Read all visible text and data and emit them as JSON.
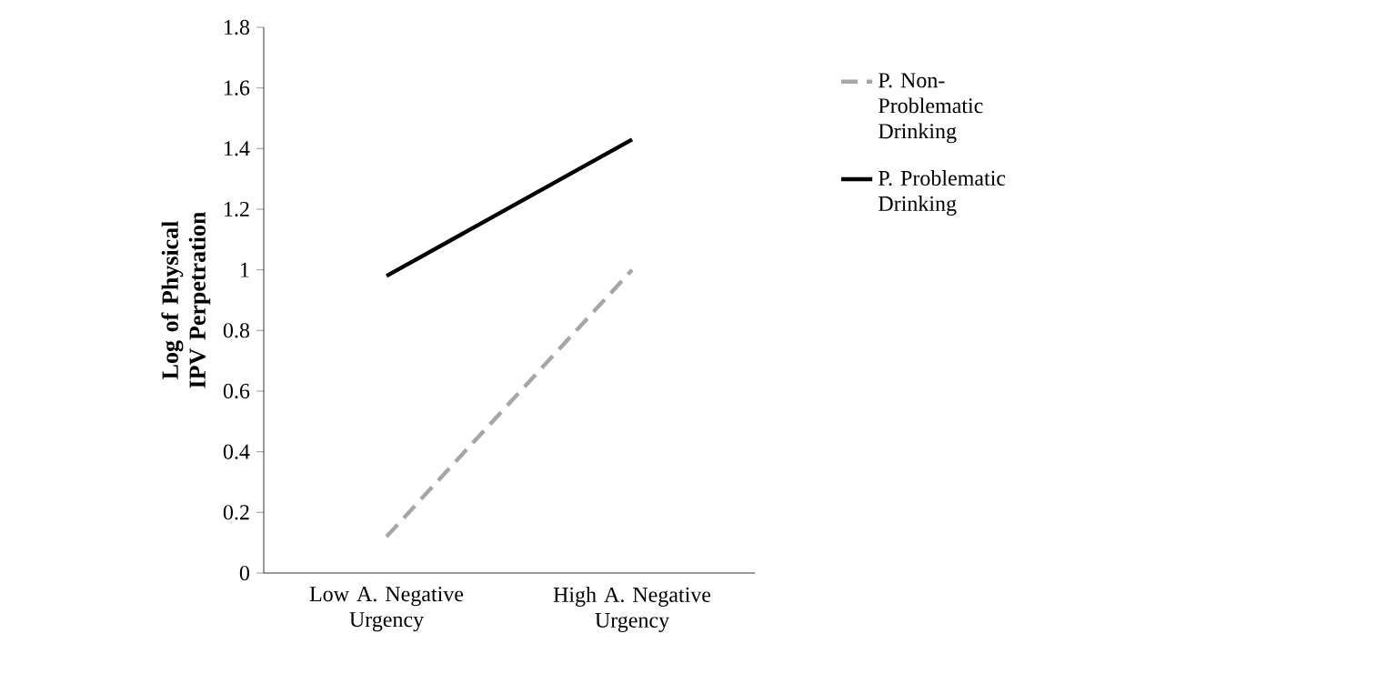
{
  "chart_data": {
    "type": "line",
    "ylabel": "Log of Physical IPV Perpetration",
    "categories": [
      "Low A. Negative Urgency",
      "High A. Negative Urgency"
    ],
    "series": [
      {
        "name": "P. Non-Problematic Drinking",
        "color": "#a6a6a6",
        "line_style": "dashed",
        "values": [
          0.12,
          1.0
        ]
      },
      {
        "name": "P. Problematic Drinking",
        "color": "#000000",
        "line_style": "solid",
        "values": [
          0.98,
          1.43
        ]
      }
    ],
    "ylim": [
      0,
      1.8
    ],
    "yticks": [
      0,
      0.2,
      0.4,
      0.6,
      0.8,
      1,
      1.2,
      1.4,
      1.6,
      1.8
    ],
    "grid": false,
    "legend": "right",
    "marker": "none"
  }
}
